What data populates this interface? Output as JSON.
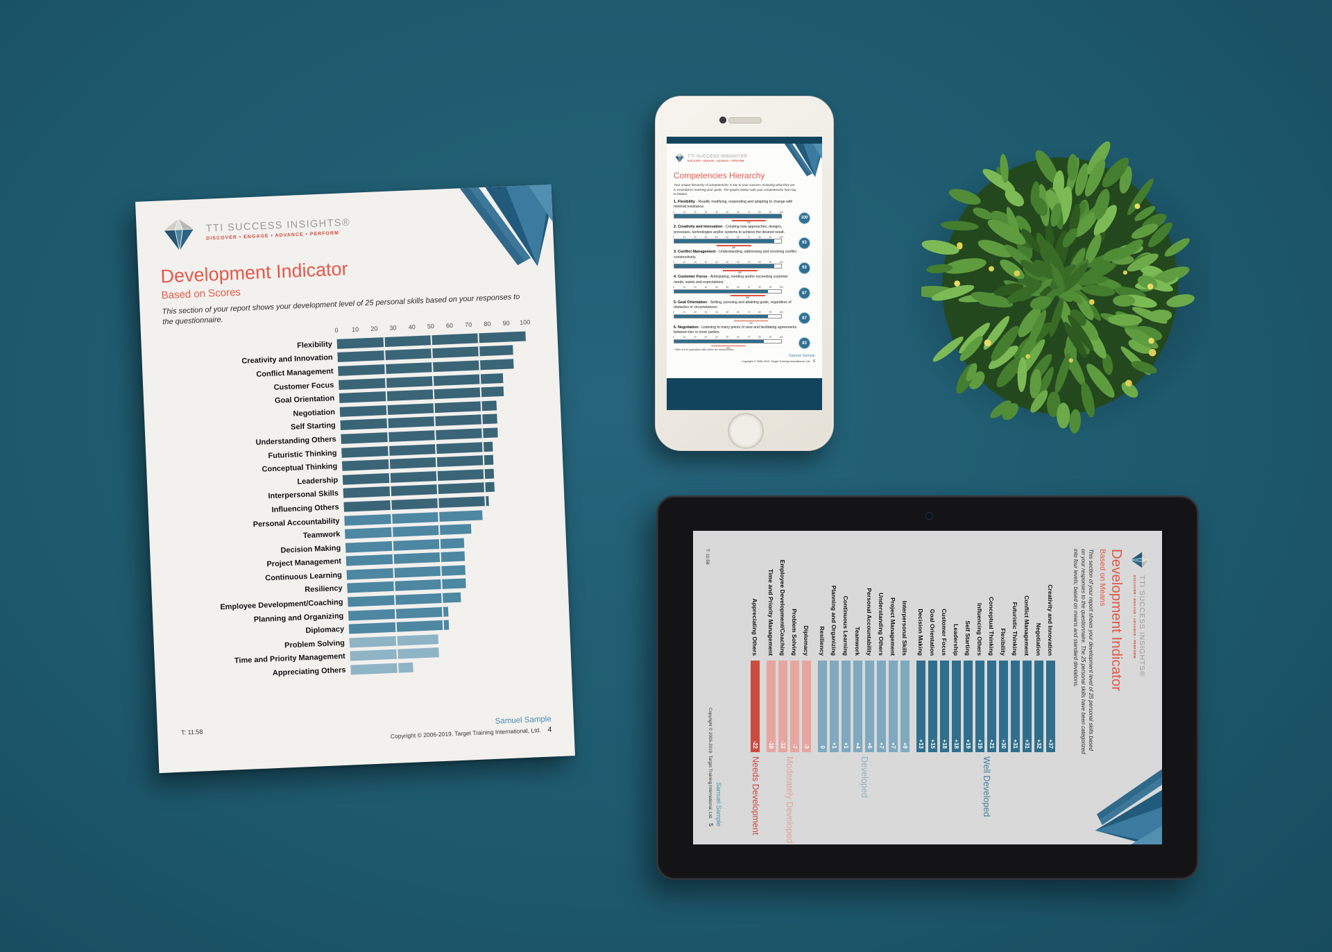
{
  "scene": {
    "background": "#1e5a6e"
  },
  "brand": {
    "name": "TTI SUCCESS INSIGHTS®",
    "tagline": "DISCOVER • ENGAGE • ADVANCE • PERFORM"
  },
  "paper": {
    "title": "Development Indicator",
    "subtitle": "Based on Scores",
    "intro": "This section of your report shows your development level of 25 personal skills based on your responses to the questionnaire.",
    "time_label": "T: 11:58",
    "user": "Samuel Sample",
    "copyright": "Copyright © 2006-2019. Target Training International, Ltd.",
    "page_number": "4",
    "chart_data": {
      "type": "bar",
      "orientation": "horizontal",
      "xlim": [
        0,
        100
      ],
      "axis_ticks": [
        0,
        10,
        20,
        30,
        40,
        50,
        60,
        70,
        80,
        90,
        100
      ],
      "grid_divisions": [
        25,
        50,
        75
      ],
      "categories": [
        "Flexibility",
        "Creativity and Innovation",
        "Conflict Management",
        "Customer Focus",
        "Goal Orientation",
        "Negotiation",
        "Self Starting",
        "Understanding Others",
        "Futuristic Thinking",
        "Conceptual Thinking",
        "Leadership",
        "Interpersonal Skills",
        "Influencing Others",
        "Personal Accountability",
        "Teamwork",
        "Decision Making",
        "Project Management",
        "Continuous Learning",
        "Resiliency",
        "Employee Development/Coaching",
        "Planning and Organizing",
        "Diplomacy",
        "Problem Solving",
        "Time and Priority Management",
        "Appreciating Others"
      ],
      "values": [
        100,
        93,
        93,
        87,
        87,
        83,
        83,
        83,
        80,
        80,
        80,
        80,
        77,
        73,
        67,
        63,
        63,
        63,
        63,
        60,
        53,
        53,
        47,
        47,
        33
      ],
      "levels": [
        "well",
        "well",
        "well",
        "well",
        "well",
        "well",
        "well",
        "well",
        "well",
        "well",
        "well",
        "well",
        "well",
        "developed",
        "developed",
        "developed",
        "developed",
        "developed",
        "developed",
        "developed",
        "developed",
        "developed",
        "moderate",
        "moderate",
        "moderate"
      ],
      "level_colors": {
        "well": "#3a6577",
        "developed": "#4d87a2",
        "moderate": "#8fb4c6"
      }
    }
  },
  "phone": {
    "heading": "Competencies Hierarchy",
    "intro": "Your unique hierarchy of competencies is key to your success. Knowing what they are is essential to reaching your goals. The graphs below rank your competencies from top to bottom.",
    "footnote": "* 68% of the population falls within the shaded area.",
    "user": "Samuel Sample",
    "copyright": "Copyright © 2006-2019. Target Training International, Ltd.",
    "page_number": "6",
    "chart_data": {
      "type": "bar",
      "axis_ticks": [
        0,
        10,
        20,
        30,
        40,
        50,
        60,
        70,
        80,
        90,
        100
      ],
      "items": [
        {
          "rank": 1,
          "name": "Flexibility",
          "description": "Readily modifying, responding and adapting to change with minimal resistance.",
          "score": 100,
          "population_mean": 70,
          "mean_label": "70*"
        },
        {
          "rank": 2,
          "name": "Creativity and Innovation",
          "description": "Creating new approaches, designs, processes, technologies and/or systems to achieve the desired result.",
          "score": 93,
          "population_mean": 56,
          "mean_label": "56*"
        },
        {
          "rank": 3,
          "name": "Conflict Management",
          "description": "Understanding, addressing and resolving conflict constructively.",
          "score": 93,
          "population_mean": 62,
          "mean_label": "62*"
        },
        {
          "rank": 4,
          "name": "Customer Focus",
          "description": "Anticipating, meeting and/or exceeding customer needs, wants and expectations.",
          "score": 87,
          "population_mean": 69,
          "mean_label": "69*"
        },
        {
          "rank": 5,
          "name": "Goal Orientation",
          "description": "Setting, pursuing and attaining goals, regardless of obstacles or circumstances.",
          "score": 87,
          "population_mean": 72,
          "mean_label": "72*"
        },
        {
          "rank": 6,
          "name": "Negotiation",
          "description": "Listening to many points of view and facilitating agreements between two or more parties.",
          "score": 83,
          "population_mean": 51,
          "mean_label": "51*"
        }
      ]
    }
  },
  "tablet": {
    "title": "Development Indicator",
    "subtitle": "Based on Means",
    "intro": "This section of your report shows your development level of 25 personal skills based on your responses to the questionnaire. The 25 personal skills have been categorized into four levels; based on means and standard deviations.",
    "time_label": "T: 11:58",
    "user": "Samuel Sample",
    "copyright": "Copyright © 2006-2019. Target Training International, Ltd.",
    "page_number": "5",
    "chart_data": {
      "type": "bar",
      "note": "difference from population mean; equal-length level strips",
      "categories": [
        "Creativity and Innovation",
        "Negotiation",
        "Conflict Management",
        "Futuristic Thinking",
        "Flexibility",
        "Conceptual Thinking",
        "Influencing Others",
        "Self Starting",
        "Leadership",
        "Customer Focus",
        "Goal Orientation",
        "Decision Making",
        "Interpersonal Skills",
        "Project Management",
        "Understanding Others",
        "Personal Accountability",
        "Teamwork",
        "Continuous Learning",
        "Planning and Organizing",
        "Resiliency",
        "Diplomacy",
        "Problem Solving",
        "Employee Development/Coaching",
        "Time and Priority Management",
        "Appreciating Others"
      ],
      "values": [
        "+37",
        "+32",
        "+31",
        "+31",
        "+30",
        "+21",
        "+19",
        "+19",
        "+18",
        "+18",
        "+15",
        "+13",
        "+9",
        "+7",
        "+7",
        "+6",
        "+4",
        "+1",
        "+1",
        "0",
        "-3",
        "-7",
        "-12",
        "-18",
        "-22"
      ],
      "levels": [
        "well",
        "well",
        "well",
        "well",
        "well",
        "well",
        "well",
        "well",
        "well",
        "well",
        "well",
        "well",
        "developed",
        "developed",
        "developed",
        "developed",
        "developed",
        "developed",
        "developed",
        "developed",
        "moderate",
        "moderate",
        "moderate",
        "moderate",
        "needs"
      ],
      "groups": [
        {
          "id": "well",
          "label": "Well Developed",
          "bar_color": "#2f6f8d",
          "label_color": "#447f9e"
        },
        {
          "id": "developed",
          "label": "Developed",
          "bar_color": "#7fa9bf",
          "label_color": "#8fb3c7"
        },
        {
          "id": "moderate",
          "label": "Moderately Developed",
          "bar_color": "#e7a59f",
          "label_color": "#e5a29c"
        },
        {
          "id": "needs",
          "label": "Needs Development",
          "bar_color": "#cc4b41",
          "label_color": "#cc4b41"
        }
      ]
    }
  }
}
